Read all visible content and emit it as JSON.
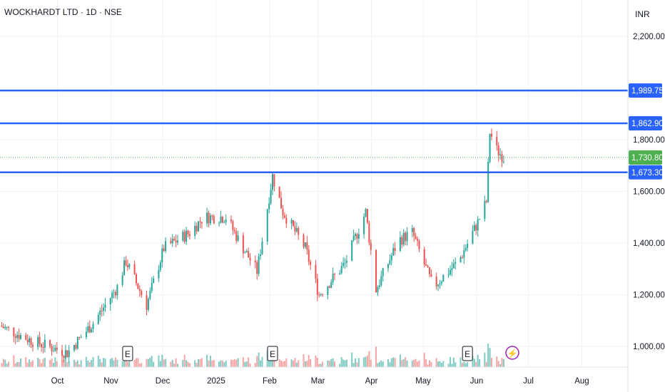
{
  "header": {
    "symbol_title": "WOCKHARDT LTD · 1D · NSE",
    "currency": "INR"
  },
  "colors": {
    "up": "#26a69a",
    "down": "#ef5350",
    "vol_up": "#80cbc4",
    "vol_down": "#f7a5a5",
    "hline": "#2962ff",
    "last_price": "#4caf50",
    "grid": "#f0f3fa",
    "axis": "#131722",
    "event_badge_border": "#131722",
    "flash_badge": "#9c27b0"
  },
  "chart_data": {
    "type": "candlestick",
    "title": "WOCKHARDT LTD · 1D · NSE",
    "y_axis": {
      "ticks": [
        1000,
        1200,
        1400,
        1600,
        1800,
        2200
      ],
      "tick_labels": [
        "1,000.00",
        "1,200.00",
        "1,400.00",
        "1,600.00",
        "1,800.00",
        "2,200.00"
      ],
      "range": [
        920,
        2340
      ]
    },
    "x_axis": {
      "tick_labels": [
        "Oct",
        "Nov",
        "Dec",
        "2025",
        "Feb",
        "Mar",
        "Apr",
        "May",
        "Jun",
        "Jul",
        "Aug"
      ],
      "range": [
        "2024-09-01",
        "2025-08-31"
      ]
    },
    "horizontal_lines": [
      {
        "value": 1989.75,
        "label": "1,989.75"
      },
      {
        "value": 1862.9,
        "label": "1,862.90"
      },
      {
        "value": 1673.3,
        "label": "1,673.30"
      }
    ],
    "last_price": {
      "value": 1730.8,
      "label": "1,730.80"
    },
    "key_points": [
      {
        "date": "2024-09-01",
        "close": 1080
      },
      {
        "date": "2024-09-20",
        "close": 1020
      },
      {
        "date": "2024-10-10",
        "close": 975
      },
      {
        "date": "2024-10-25",
        "close": 1090
      },
      {
        "date": "2024-11-08",
        "close": 1230
      },
      {
        "date": "2024-11-13",
        "close": 1330
      },
      {
        "date": "2024-11-25",
        "close": 1160
      },
      {
        "date": "2024-12-05",
        "close": 1380
      },
      {
        "date": "2024-12-20",
        "close": 1440
      },
      {
        "date": "2024-12-28",
        "close": 1500
      },
      {
        "date": "2025-01-10",
        "close": 1500
      },
      {
        "date": "2025-01-20",
        "close": 1380
      },
      {
        "date": "2025-01-28",
        "close": 1290
      },
      {
        "date": "2025-02-06",
        "close": 1660
      },
      {
        "date": "2025-02-12",
        "close": 1520
      },
      {
        "date": "2025-02-25",
        "close": 1380
      },
      {
        "date": "2025-03-05",
        "close": 1200
      },
      {
        "date": "2025-03-20",
        "close": 1320
      },
      {
        "date": "2025-04-01",
        "close": 1520
      },
      {
        "date": "2025-04-07",
        "close": 1220
      },
      {
        "date": "2025-04-20",
        "close": 1410
      },
      {
        "date": "2025-04-28",
        "close": 1440
      },
      {
        "date": "2025-05-10",
        "close": 1230
      },
      {
        "date": "2025-05-25",
        "close": 1330
      },
      {
        "date": "2025-06-05",
        "close": 1480
      },
      {
        "date": "2025-06-10",
        "close": 1560
      },
      {
        "date": "2025-06-12",
        "close": 1830
      },
      {
        "date": "2025-06-16",
        "close": 1760
      },
      {
        "date": "2025-06-20",
        "close": 1730
      }
    ],
    "event_markers": [
      {
        "date": "2024-11-14",
        "label": "E"
      },
      {
        "date": "2025-02-06",
        "label": "E"
      },
      {
        "date": "2025-05-30",
        "label": "E"
      },
      {
        "date": "2025-06-25",
        "label": "⚡"
      }
    ]
  }
}
